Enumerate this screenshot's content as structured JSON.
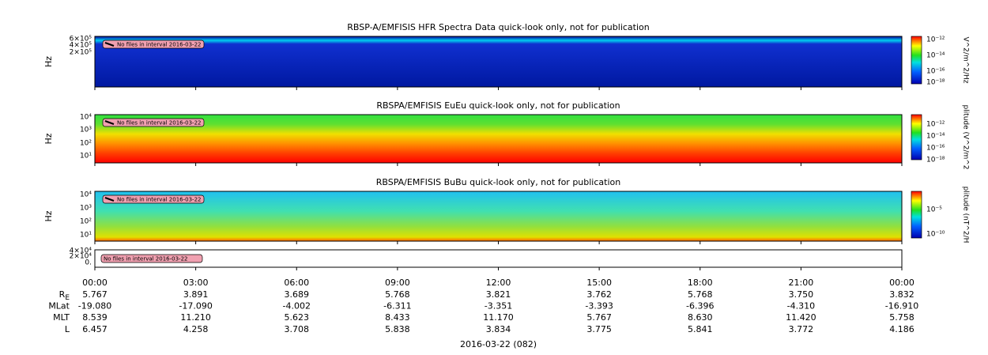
{
  "panels": [
    {
      "title": "RBSP-A/EMFISIS  HFR Spectra Data quick-look only, not for publication",
      "ylabel": "Hz",
      "yticks": [
        "6×10⁵",
        "4×10⁵",
        "2×10⁵"
      ],
      "notice": "No files in interval 2016-03-22",
      "colorbar": {
        "label": "V^2/m^2/Hz",
        "ticks": [
          "10⁻¹²",
          "10⁻¹⁴",
          "10⁻¹⁶",
          "10⁻¹⁸"
        ]
      }
    },
    {
      "title": "RBSPA/EMFISIS  EuEu quick-look only, not for publication",
      "ylabel": "Hz",
      "yticks": [
        "10⁴",
        "10³",
        "10²",
        "10¹"
      ],
      "notice": "No files in interval 2016-03-22",
      "colorbar": {
        "label": "plitude (V^2/m^2",
        "ticks": [
          "10⁻¹²",
          "10⁻¹⁴",
          "10⁻¹⁶",
          "10⁻¹⁸"
        ]
      }
    },
    {
      "title": "RBSPA/EMFISIS  BuBu quick-look only, not for publication",
      "ylabel": "Hz",
      "yticks": [
        "10⁴",
        "10³",
        "10²",
        "10¹"
      ],
      "notice": "No files in interval 2016-03-22",
      "colorbar": {
        "label": "plitude (nT^2/H",
        "ticks": [
          "10⁻⁵",
          "10⁻¹⁰"
        ]
      }
    },
    {
      "yticks": [
        "4×10⁴",
        "2×10⁴",
        "0."
      ],
      "notice": "No files in interval 2016-03-22"
    }
  ],
  "times": [
    "00:00",
    "03:00",
    "06:00",
    "09:00",
    "12:00",
    "15:00",
    "18:00",
    "21:00",
    "00:00"
  ],
  "ephemeris": [
    {
      "label": "R",
      "sub": "E",
      "values": [
        "5.767",
        "3.891",
        "3.689",
        "5.768",
        "3.821",
        "3.762",
        "5.768",
        "3.750",
        "3.832"
      ]
    },
    {
      "label": "MLat",
      "values": [
        "-19.080",
        "-17.090",
        "-4.002",
        "-6.311",
        "-3.351",
        "-3.393",
        "-6.396",
        "-4.310",
        "-16.910"
      ]
    },
    {
      "label": "MLT",
      "values": [
        "8.539",
        "11.210",
        "5.623",
        "8.433",
        "11.170",
        "5.767",
        "8.630",
        "11.420",
        "5.758"
      ]
    },
    {
      "label": "L",
      "values": [
        "6.457",
        "4.258",
        "3.708",
        "5.838",
        "3.834",
        "3.775",
        "5.841",
        "3.772",
        "4.186"
      ]
    }
  ],
  "date_label": "2016-03-22 (082)"
}
